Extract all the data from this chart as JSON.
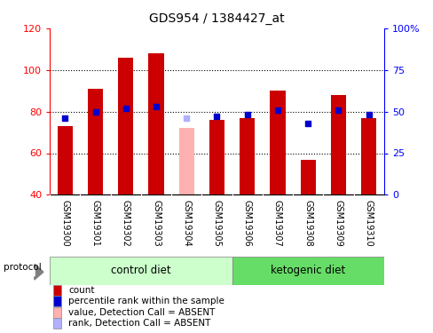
{
  "title": "GDS954 / 1384427_at",
  "samples": [
    "GSM19300",
    "GSM19301",
    "GSM19302",
    "GSM19303",
    "GSM19304",
    "GSM19305",
    "GSM19306",
    "GSM19307",
    "GSM19308",
    "GSM19309",
    "GSM19310"
  ],
  "counts": [
    73,
    91,
    106,
    108,
    null,
    76,
    77,
    90,
    57,
    88,
    77
  ],
  "ranks": [
    46,
    50,
    52,
    53,
    null,
    47,
    48,
    51,
    43,
    51,
    48
  ],
  "absent_count": [
    null,
    null,
    null,
    null,
    72,
    null,
    null,
    null,
    null,
    null,
    null
  ],
  "absent_rank": [
    null,
    null,
    null,
    null,
    46,
    null,
    null,
    null,
    null,
    null,
    null
  ],
  "ylim_left": [
    40,
    120
  ],
  "ylim_right": [
    0,
    100
  ],
  "yticks_left": [
    40,
    60,
    80,
    100,
    120
  ],
  "yticks_right": [
    0,
    25,
    50,
    75,
    100
  ],
  "ytick_labels_left": [
    "40",
    "60",
    "80",
    "100",
    "120"
  ],
  "ytick_labels_right": [
    "0",
    "25",
    "50",
    "75",
    "100%"
  ],
  "bar_color_present": "#cc0000",
  "bar_color_absent": "#ffb0b0",
  "square_color_present": "#0000cc",
  "square_color_absent": "#b0b0ff",
  "group_bg_control": "#ccffcc",
  "group_bg_ketogenic": "#66dd66",
  "tick_area_bg": "#cccccc",
  "bar_width": 0.5,
  "legend_items": [
    {
      "label": "count",
      "color": "#cc0000"
    },
    {
      "label": "percentile rank within the sample",
      "color": "#0000cc"
    },
    {
      "label": "value, Detection Call = ABSENT",
      "color": "#ffb0b0"
    },
    {
      "label": "rank, Detection Call = ABSENT",
      "color": "#b0b0ff"
    }
  ]
}
